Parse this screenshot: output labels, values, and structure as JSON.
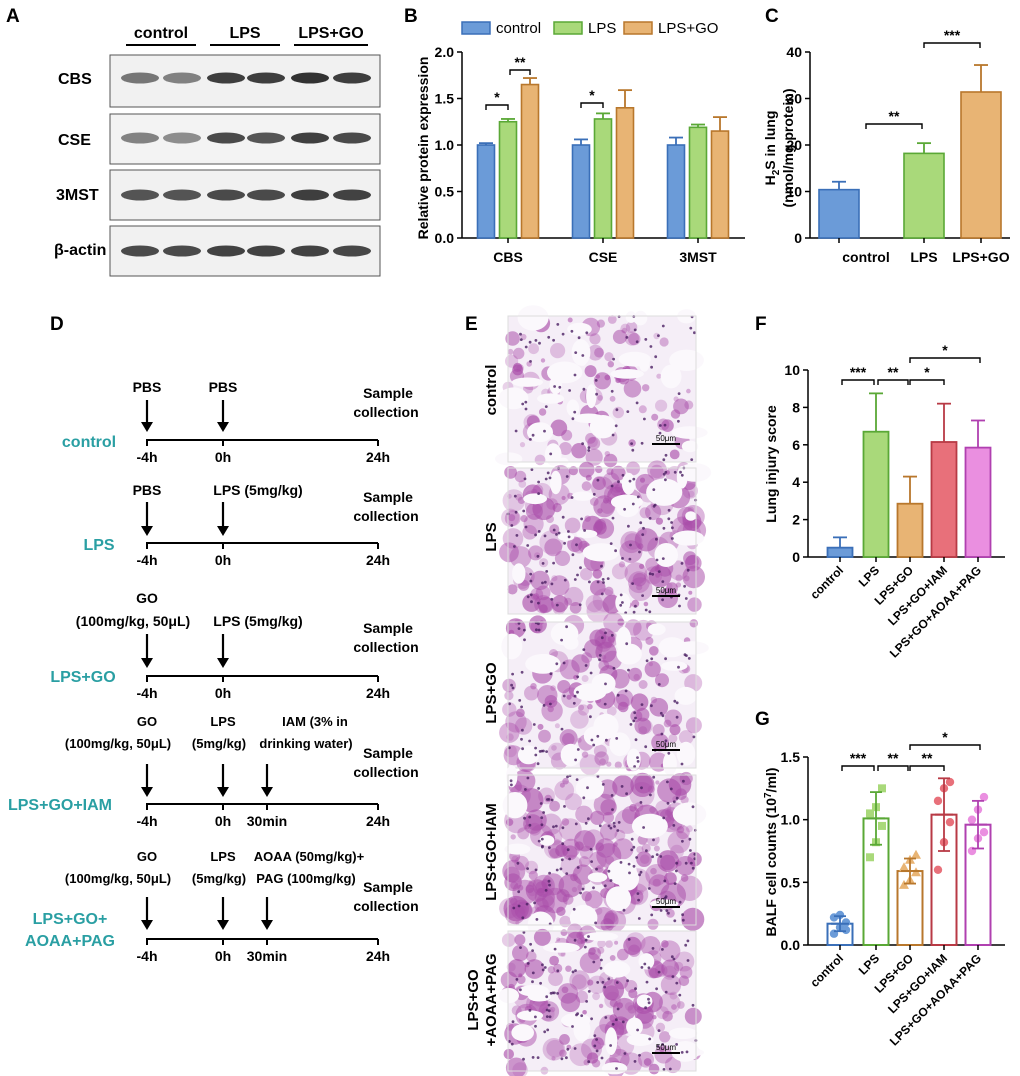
{
  "panels": {
    "A": {
      "letter": "A",
      "groups": [
        "control",
        "LPS",
        "LPS+GO"
      ],
      "rows": [
        "CBS",
        "CSE",
        "3MST",
        "β-actin"
      ]
    },
    "B": {
      "letter": "B",
      "legend": [
        "control",
        "LPS",
        "LPS+GO"
      ],
      "ylabel": "Relative protein expression",
      "yticks": [
        "0.0",
        "0.5",
        "1.0",
        "1.5",
        "2.0"
      ],
      "sig": [
        "*",
        "**",
        "*"
      ]
    },
    "C": {
      "letter": "C",
      "ylabel_line1": "H",
      "ylabel_sub": "2",
      "ylabel_line1b": "S in lung",
      "ylabel_line2": "(nmol/mg protein)",
      "yticks": [
        "0",
        "10",
        "20",
        "30",
        "40"
      ],
      "sig": [
        "**",
        "***"
      ]
    },
    "D": {
      "letter": "D",
      "protocols": [
        {
          "name": "control",
          "labels": [
            {
              "text": "PBS"
            },
            {
              "text": "PBS"
            }
          ],
          "sample1": "Sample",
          "sample2": "collection",
          "times": [
            "-4h",
            "0h",
            "24h"
          ]
        },
        {
          "name": "LPS",
          "labels": [
            {
              "text": "PBS"
            },
            {
              "text": "LPS (5mg/kg)"
            }
          ],
          "sample1": "Sample",
          "sample2": "collection",
          "times": [
            "-4h",
            "0h",
            "24h"
          ]
        },
        {
          "name": "LPS+GO",
          "labels": [
            {
              "text": "GO"
            },
            {
              "text": "(100mg/kg, 50μL)"
            },
            {
              "text": "LPS (5mg/kg)"
            }
          ],
          "sample1": "Sample",
          "sample2": "collection",
          "times": [
            "-4h",
            "0h",
            "24h"
          ]
        },
        {
          "name": "LPS+GO+IAM",
          "labels": [
            {
              "text": "GO"
            },
            {
              "text": "(100mg/kg, 50μL)"
            },
            {
              "text": "LPS"
            },
            {
              "text": "(5mg/kg)"
            },
            {
              "text": "IAM (3% in"
            },
            {
              "text": "drinking water)"
            }
          ],
          "sample1": "Sample",
          "sample2": "collection",
          "times": [
            "-4h",
            "0h",
            "30min",
            "24h"
          ]
        },
        {
          "name1": "LPS+GO+",
          "name2": "AOAA+PAG",
          "labels": [
            {
              "text": "GO"
            },
            {
              "text": "(100mg/kg, 50μL)"
            },
            {
              "text": "LPS"
            },
            {
              "text": "(5mg/kg)"
            },
            {
              "text": "AOAA (50mg/kg)+"
            },
            {
              "text": "PAG (100mg/kg)"
            }
          ],
          "sample1": "Sample",
          "sample2": "collection",
          "times": [
            "-4h",
            "0h",
            "30min",
            "24h"
          ]
        }
      ]
    },
    "E": {
      "letter": "E",
      "rows": [
        "control",
        "LPS",
        "LPS+GO",
        "LPS+GO+IAM"
      ],
      "last_row_line1": "LPS+GO",
      "last_row_line2": "+AOAA+PAG",
      "scale": "50μm"
    },
    "F": {
      "letter": "F",
      "ylabel": "Lung injury score",
      "yticks": [
        "0",
        "2",
        "4",
        "6",
        "8",
        "10"
      ],
      "sig": [
        "***",
        "**",
        "*",
        "*"
      ]
    },
    "G": {
      "letter": "G",
      "ylabel_a": "BALF cell counts (10",
      "ylabel_sup": "7",
      "ylabel_b": "/ml)",
      "yticks": [
        "0.0",
        "0.5",
        "1.0",
        "1.5"
      ],
      "sig": [
        "***",
        "**",
        "**",
        "*"
      ]
    }
  },
  "colors": {
    "control": "#6b9bd8",
    "LPS": "#a9d97a",
    "LPS+GO": "#e8b474",
    "LPS+GO+IAM": "#e8707a",
    "LPS+GO+AOAA+PAG": "#ea8fe0",
    "control_edge": "#3a6fb8",
    "LPS_edge": "#5aa836",
    "LPS+GO_edge": "#b8772c",
    "IAM_edge": "#b83a45",
    "AOAA_edge": "#b040b0",
    "timeline_label": "#2a9fa3",
    "histology": "#a94ca9"
  },
  "chart_data": [
    {
      "type": "bar",
      "title": "",
      "categories": [
        "CBS",
        "CSE",
        "3MST"
      ],
      "series": [
        {
          "name": "control",
          "values": [
            1.0,
            1.0,
            1.0
          ],
          "errors": [
            0.02,
            0.06,
            0.08
          ]
        },
        {
          "name": "LPS",
          "values": [
            1.25,
            1.28,
            1.19
          ],
          "errors": [
            0.03,
            0.06,
            0.03
          ]
        },
        {
          "name": "LPS+GO",
          "values": [
            1.65,
            1.4,
            1.15
          ],
          "errors": [
            0.07,
            0.19,
            0.15
          ]
        }
      ],
      "ylabel": "Relative protein expression",
      "ylim": [
        0,
        2.0
      ],
      "legend": "top"
    },
    {
      "type": "bar",
      "categories": [
        "control",
        "LPS",
        "LPS+GO"
      ],
      "values": [
        10.4,
        18.2,
        31.4
      ],
      "errors": [
        1.7,
        2.2,
        5.8
      ],
      "ylabel": "H2S in lung (nmol/mg protein)",
      "ylim": [
        0,
        40
      ]
    },
    {
      "type": "bar",
      "categories": [
        "control",
        "LPS",
        "LPS+GO",
        "LPS+GO+IAM",
        "LPS+GO+AOAA+PAG"
      ],
      "values": [
        0.5,
        6.7,
        2.85,
        6.15,
        5.85
      ],
      "errors": [
        0.55,
        2.05,
        1.45,
        2.05,
        1.45
      ],
      "ylabel": "Lung injury score",
      "ylim": [
        0,
        10
      ]
    },
    {
      "type": "bar",
      "categories": [
        "control",
        "LPS",
        "LPS+GO",
        "LPS+GO+IAM",
        "LPS+GO+AOAA+PAG"
      ],
      "values": [
        0.17,
        1.01,
        0.59,
        1.04,
        0.96
      ],
      "errors": [
        0.06,
        0.21,
        0.1,
        0.29,
        0.19
      ],
      "points": [
        [
          0.09,
          0.14,
          0.18,
          0.22,
          0.24,
          0.12
        ],
        [
          0.7,
          0.82,
          0.95,
          1.05,
          1.1,
          1.25
        ],
        [
          0.48,
          0.52,
          0.58,
          0.62,
          0.68,
          0.72
        ],
        [
          0.6,
          0.82,
          0.98,
          1.15,
          1.25,
          1.3
        ],
        [
          0.75,
          0.85,
          0.9,
          1.0,
          1.08,
          1.18
        ]
      ],
      "ylabel": "BALF cell counts (10^7/ml)",
      "ylim": [
        0,
        1.5
      ]
    }
  ]
}
